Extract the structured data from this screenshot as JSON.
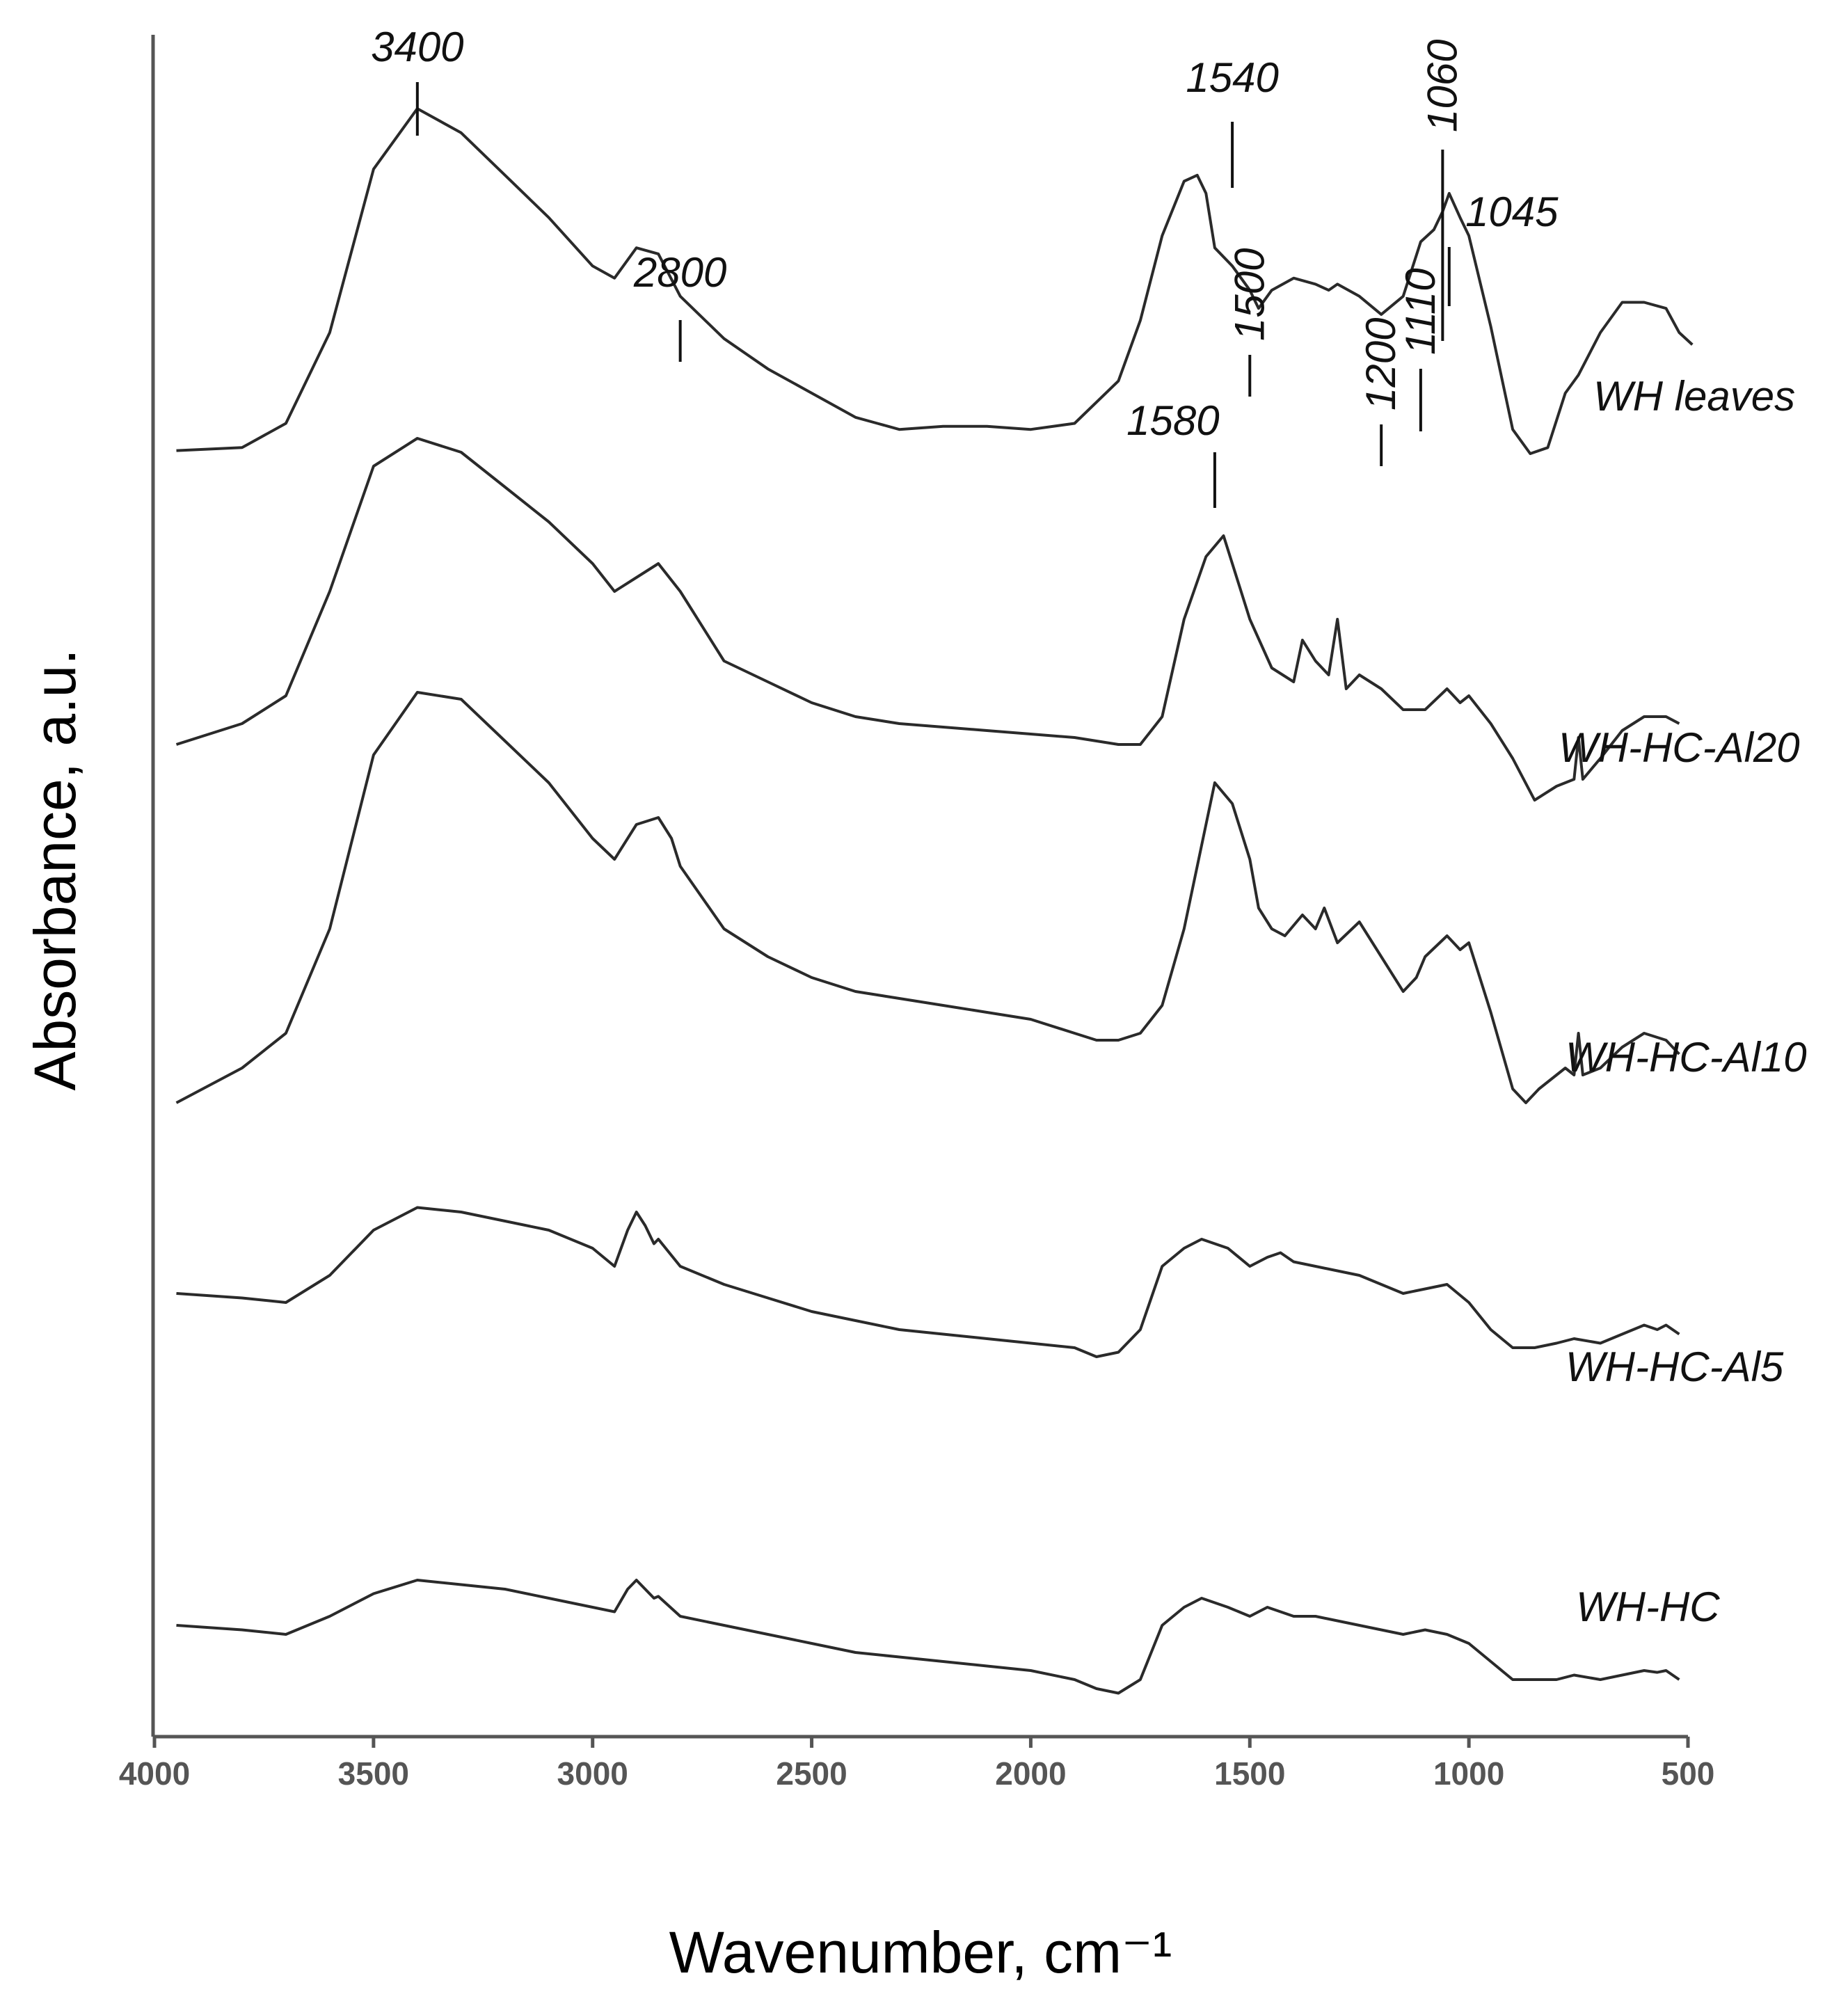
{
  "chart_data": {
    "type": "line",
    "title": "",
    "xlabel": "Wavenumber, cm⁻¹",
    "ylabel": "Absorbance, a.u.",
    "xlim": [
      4000,
      500
    ],
    "x_reversed": true,
    "xticks": [
      4000,
      3500,
      3000,
      2500,
      2000,
      1500,
      1000,
      500
    ],
    "grid": false,
    "legend": "inline labels at right",
    "peak_annotations": [
      {
        "label": "3400",
        "x": 3400,
        "on": "WH leaves",
        "rotated": false
      },
      {
        "label": "2800",
        "x": 2800,
        "on": "WH leaves",
        "rotated": false
      },
      {
        "label": "1580",
        "x": 1580,
        "on": "WH leaves",
        "rotated": false
      },
      {
        "label": "1540",
        "x": 1540,
        "on": "WH leaves",
        "rotated": false
      },
      {
        "label": "1500",
        "x": 1500,
        "on": "WH leaves",
        "rotated": true
      },
      {
        "label": "1200",
        "x": 1200,
        "on": "WH leaves",
        "rotated": true
      },
      {
        "label": "1110",
        "x": 1110,
        "on": "WH leaves",
        "rotated": true
      },
      {
        "label": "1060",
        "x": 1060,
        "on": "WH leaves",
        "rotated": true
      },
      {
        "label": "1045",
        "x": 1045,
        "on": "WH leaves",
        "rotated": false
      }
    ],
    "series": [
      {
        "name": "WH leaves",
        "x": [
          3950,
          3800,
          3700,
          3600,
          3500,
          3400,
          3300,
          3200,
          3100,
          3000,
          2950,
          2900,
          2850,
          2800,
          2700,
          2600,
          2500,
          2400,
          2350,
          2300,
          2200,
          2100,
          2000,
          1900,
          1800,
          1750,
          1700,
          1650,
          1620,
          1600,
          1580,
          1540,
          1500,
          1480,
          1450,
          1400,
          1350,
          1320,
          1300,
          1250,
          1200,
          1150,
          1110,
          1080,
          1060,
          1045,
          1020,
          1000,
          950,
          900,
          860,
          820,
          780,
          750,
          700,
          650,
          600,
          550,
          520,
          490
        ],
        "values": [
          0.405,
          0.41,
          0.45,
          0.6,
          0.87,
          0.97,
          0.93,
          0.86,
          0.79,
          0.71,
          0.69,
          0.74,
          0.73,
          0.66,
          0.59,
          0.54,
          0.5,
          0.46,
          0.45,
          0.44,
          0.445,
          0.445,
          0.44,
          0.45,
          0.52,
          0.62,
          0.76,
          0.85,
          0.86,
          0.83,
          0.74,
          0.71,
          0.67,
          0.64,
          0.67,
          0.69,
          0.68,
          0.67,
          0.68,
          0.66,
          0.63,
          0.66,
          0.75,
          0.77,
          0.8,
          0.83,
          0.79,
          0.76,
          0.61,
          0.44,
          0.4,
          0.41,
          0.5,
          0.53,
          0.6,
          0.65,
          0.65,
          0.64,
          0.6,
          0.58
        ]
      },
      {
        "name": "WH-HC-Al20",
        "x": [
          3950,
          3800,
          3700,
          3600,
          3500,
          3400,
          3300,
          3200,
          3100,
          3000,
          2950,
          2900,
          2850,
          2800,
          2780,
          2700,
          2600,
          2500,
          2400,
          2300,
          2200,
          2100,
          2000,
          1900,
          1850,
          1800,
          1750,
          1700,
          1650,
          1600,
          1560,
          1500,
          1450,
          1400,
          1380,
          1350,
          1320,
          1300,
          1280,
          1250,
          1200,
          1150,
          1100,
          1050,
          1020,
          1000,
          950,
          900,
          850,
          800,
          760,
          750,
          740,
          700,
          650,
          600,
          550,
          520
        ],
        "values": [
          0.38,
          0.41,
          0.45,
          0.6,
          0.78,
          0.82,
          0.8,
          0.75,
          0.7,
          0.64,
          0.6,
          0.62,
          0.64,
          0.6,
          0.58,
          0.5,
          0.47,
          0.44,
          0.42,
          0.41,
          0.405,
          0.4,
          0.395,
          0.39,
          0.385,
          0.38,
          0.38,
          0.42,
          0.56,
          0.65,
          0.68,
          0.56,
          0.49,
          0.47,
          0.53,
          0.5,
          0.48,
          0.56,
          0.46,
          0.48,
          0.46,
          0.43,
          0.43,
          0.46,
          0.44,
          0.45,
          0.41,
          0.36,
          0.3,
          0.32,
          0.33,
          0.39,
          0.33,
          0.36,
          0.4,
          0.42,
          0.42,
          0.41
        ]
      },
      {
        "name": "WH-HC-Al10",
        "x": [
          3950,
          3800,
          3700,
          3600,
          3500,
          3400,
          3300,
          3200,
          3100,
          3000,
          2950,
          2900,
          2850,
          2820,
          2800,
          2700,
          2600,
          2500,
          2400,
          2300,
          2200,
          2100,
          2000,
          1900,
          1850,
          1800,
          1750,
          1700,
          1650,
          1600,
          1580,
          1540,
          1500,
          1480,
          1450,
          1420,
          1380,
          1350,
          1330,
          1300,
          1250,
          1200,
          1150,
          1120,
          1100,
          1050,
          1020,
          1000,
          950,
          900,
          870,
          840,
          780,
          760,
          750,
          740,
          700,
          650,
          600,
          550,
          520
        ],
        "values": [
          0.2,
          0.25,
          0.3,
          0.45,
          0.7,
          0.79,
          0.78,
          0.72,
          0.66,
          0.58,
          0.55,
          0.6,
          0.61,
          0.58,
          0.54,
          0.45,
          0.41,
          0.38,
          0.36,
          0.35,
          0.34,
          0.33,
          0.32,
          0.3,
          0.29,
          0.29,
          0.3,
          0.34,
          0.45,
          0.6,
          0.66,
          0.63,
          0.55,
          0.48,
          0.45,
          0.44,
          0.47,
          0.45,
          0.48,
          0.43,
          0.46,
          0.41,
          0.36,
          0.38,
          0.41,
          0.44,
          0.42,
          0.43,
          0.33,
          0.22,
          0.2,
          0.22,
          0.25,
          0.24,
          0.3,
          0.24,
          0.25,
          0.28,
          0.3,
          0.29,
          0.27
        ]
      },
      {
        "name": "WH-HC-Al5",
        "x": [
          3950,
          3800,
          3700,
          3600,
          3500,
          3400,
          3300,
          3200,
          3100,
          3000,
          2950,
          2920,
          2900,
          2880,
          2860,
          2850,
          2800,
          2700,
          2600,
          2500,
          2400,
          2300,
          2200,
          2100,
          2000,
          1900,
          1850,
          1800,
          1750,
          1700,
          1650,
          1610,
          1550,
          1500,
          1460,
          1430,
          1400,
          1350,
          1300,
          1250,
          1200,
          1150,
          1100,
          1050,
          1000,
          950,
          900,
          850,
          800,
          760,
          700,
          650,
          600,
          570,
          550,
          520
        ],
        "values": [
          0.17,
          0.165,
          0.16,
          0.19,
          0.24,
          0.265,
          0.26,
          0.25,
          0.24,
          0.22,
          0.2,
          0.24,
          0.26,
          0.245,
          0.225,
          0.23,
          0.2,
          0.18,
          0.165,
          0.15,
          0.14,
          0.13,
          0.125,
          0.12,
          0.115,
          0.11,
          0.1,
          0.105,
          0.13,
          0.2,
          0.22,
          0.23,
          0.22,
          0.2,
          0.21,
          0.215,
          0.205,
          0.2,
          0.195,
          0.19,
          0.18,
          0.17,
          0.175,
          0.18,
          0.16,
          0.13,
          0.11,
          0.11,
          0.115,
          0.12,
          0.115,
          0.125,
          0.135,
          0.13,
          0.135,
          0.125
        ]
      },
      {
        "name": "WH-HC",
        "x": [
          3950,
          3800,
          3700,
          3600,
          3500,
          3400,
          3300,
          3200,
          3100,
          3000,
          2950,
          2920,
          2900,
          2880,
          2860,
          2850,
          2800,
          2700,
          2600,
          2500,
          2400,
          2300,
          2200,
          2100,
          2000,
          1900,
          1850,
          1800,
          1750,
          1700,
          1650,
          1610,
          1550,
          1500,
          1460,
          1430,
          1400,
          1350,
          1300,
          1250,
          1200,
          1150,
          1100,
          1050,
          1000,
          950,
          900,
          850,
          800,
          760,
          700,
          650,
          600,
          570,
          550,
          520
        ],
        "values": [
          0.08,
          0.075,
          0.07,
          0.09,
          0.115,
          0.13,
          0.125,
          0.12,
          0.11,
          0.1,
          0.095,
          0.12,
          0.13,
          0.12,
          0.11,
          0.112,
          0.09,
          0.08,
          0.07,
          0.06,
          0.05,
          0.045,
          0.04,
          0.035,
          0.03,
          0.02,
          0.01,
          0.005,
          0.02,
          0.08,
          0.1,
          0.11,
          0.1,
          0.09,
          0.1,
          0.095,
          0.09,
          0.09,
          0.085,
          0.08,
          0.075,
          0.07,
          0.075,
          0.07,
          0.06,
          0.04,
          0.02,
          0.02,
          0.02,
          0.025,
          0.02,
          0.025,
          0.03,
          0.028,
          0.03,
          0.02
        ]
      }
    ]
  }
}
